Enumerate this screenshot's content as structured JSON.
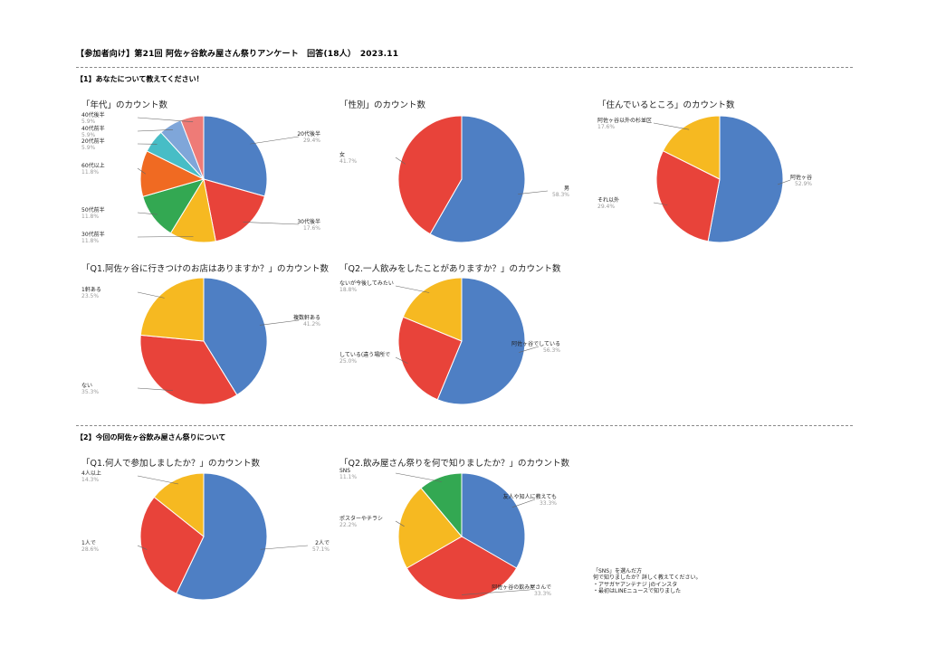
{
  "header": "【参加者向け】第21回 阿佐ヶ谷飲み屋さん祭りアンケート　回答(18人）　2023.11",
  "section1": "【1】あなたについて教えてください！",
  "section2": "【2】今回の阿佐ヶ谷飲み屋さん祭りについて",
  "note": [
    "「SNS」を選んだ方",
    "何で知りましたか？詳しく教えてください。",
    "・アサガヤアンテナジ jのインスタ",
    "・最初はLINEニュースで知りました"
  ],
  "chart_data": [
    {
      "id": "age",
      "type": "pie",
      "title": "「年代」のカウント数",
      "slices": [
        {
          "label": "20代後半",
          "value": 29.4,
          "pct_text": "29.4%",
          "color": "#4e7fc4"
        },
        {
          "label": "30代後半",
          "value": 17.6,
          "pct_text": "17.6%",
          "color": "#e8433a"
        },
        {
          "label": "30代前半",
          "value": 11.8,
          "pct_text": "11.8%",
          "color": "#f6b921"
        },
        {
          "label": "50代前半",
          "value": 11.8,
          "pct_text": "11.8%",
          "color": "#33a852"
        },
        {
          "label": "60代以上",
          "value": 11.8,
          "pct_text": "11.8%",
          "color": "#f06a22"
        },
        {
          "label": "20代前半",
          "value": 5.9,
          "pct_text": "5.9%",
          "color": "#47bdc6"
        },
        {
          "label": "40代前半",
          "value": 5.9,
          "pct_text": "5.9%",
          "color": "#7fa6d9"
        },
        {
          "label": "40代後半",
          "value": 5.9,
          "pct_text": "5.9%",
          "color": "#ee7b77"
        }
      ]
    },
    {
      "id": "gender",
      "type": "pie",
      "title": "「性別」のカウント数",
      "slices": [
        {
          "label": "男",
          "value": 58.3,
          "pct_text": "58.3%",
          "color": "#4e7fc4"
        },
        {
          "label": "女",
          "value": 41.7,
          "pct_text": "41.7%",
          "color": "#e8433a"
        }
      ]
    },
    {
      "id": "residence",
      "type": "pie",
      "title": "「住んでいるところ」のカウント数",
      "slices": [
        {
          "label": "阿佐ヶ谷",
          "value": 52.9,
          "pct_text": "52.9%",
          "color": "#4e7fc4"
        },
        {
          "label": "それ以外",
          "value": 29.4,
          "pct_text": "29.4%",
          "color": "#e8433a"
        },
        {
          "label": "阿佐ヶ谷以外の杉並区",
          "value": 17.6,
          "pct_text": "17.6%",
          "color": "#f6b921"
        }
      ]
    },
    {
      "id": "q1_shop",
      "type": "pie",
      "title": "「Q1.阿佐ヶ谷に行きつけのお店はありますか？」のカウント数",
      "slices": [
        {
          "label": "複数軒ある",
          "value": 41.2,
          "pct_text": "41.2%",
          "color": "#4e7fc4"
        },
        {
          "label": "ない",
          "value": 35.3,
          "pct_text": "35.3%",
          "color": "#e8433a"
        },
        {
          "label": "1軒ある",
          "value": 23.5,
          "pct_text": "23.5%",
          "color": "#f6b921"
        }
      ]
    },
    {
      "id": "q2_solo",
      "type": "pie",
      "title": "「Q2.一人飲みをしたことがありますか？」のカウント数",
      "slices": [
        {
          "label": "阿佐ヶ谷でしている",
          "value": 56.3,
          "pct_text": "56.3%",
          "color": "#4e7fc4"
        },
        {
          "label": "している(違う場所で",
          "value": 25.0,
          "pct_text": "25.0%",
          "color": "#e8433a"
        },
        {
          "label": "ないが今後してみたい",
          "value": 18.8,
          "pct_text": "18.8%",
          "color": "#f6b921"
        }
      ]
    },
    {
      "id": "q1_people",
      "type": "pie",
      "title": "「Q1.何人で参加しましたか？」のカウント数",
      "slices": [
        {
          "label": "2人で",
          "value": 57.1,
          "pct_text": "57.1%",
          "color": "#4e7fc4"
        },
        {
          "label": "1人で",
          "value": 28.6,
          "pct_text": "28.6%",
          "color": "#e8433a"
        },
        {
          "label": "4人以上",
          "value": 14.3,
          "pct_text": "14.3%",
          "color": "#f6b921"
        }
      ]
    },
    {
      "id": "q2_source",
      "type": "pie",
      "title": "「Q2.飲み屋さん祭りを何で知りましたか？」のカウント数",
      "slices": [
        {
          "label": "友人や知人に教えても",
          "value": 33.3,
          "pct_text": "33.3%",
          "color": "#4e7fc4"
        },
        {
          "label": "阿佐ヶ谷の飲み屋さんで",
          "value": 33.3,
          "pct_text": "33.3%",
          "color": "#e8433a"
        },
        {
          "label": "ポスターやチラシ",
          "value": 22.2,
          "pct_text": "22.2%",
          "color": "#f6b921"
        },
        {
          "label": "SNS",
          "value": 11.1,
          "pct_text": "11.1%",
          "color": "#33a852"
        }
      ]
    }
  ]
}
